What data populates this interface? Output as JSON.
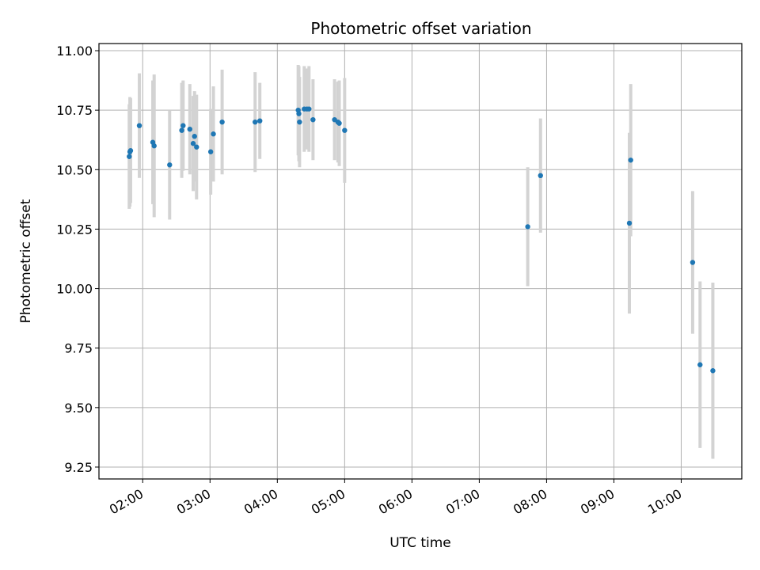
{
  "chart_data": {
    "type": "scatter",
    "title": "Photometric offset variation",
    "xlabel": "UTC time",
    "ylabel": "Photometric offset",
    "grid": true,
    "xlim_hours": [
      1.35,
      10.9
    ],
    "ylim": [
      9.2,
      11.03
    ],
    "x_ticks": [
      {
        "value": 2,
        "label": "02:00"
      },
      {
        "value": 3,
        "label": "03:00"
      },
      {
        "value": 4,
        "label": "04:00"
      },
      {
        "value": 5,
        "label": "05:00"
      },
      {
        "value": 6,
        "label": "06:00"
      },
      {
        "value": 7,
        "label": "07:00"
      },
      {
        "value": 8,
        "label": "08:00"
      },
      {
        "value": 9,
        "label": "09:00"
      },
      {
        "value": 10,
        "label": "10:00"
      }
    ],
    "y_ticks": [
      {
        "value": 9.25,
        "label": "9.25"
      },
      {
        "value": 9.5,
        "label": "9.50"
      },
      {
        "value": 9.75,
        "label": "9.75"
      },
      {
        "value": 10.0,
        "label": "10.00"
      },
      {
        "value": 10.25,
        "label": "10.25"
      },
      {
        "value": 10.5,
        "label": "10.50"
      },
      {
        "value": 10.75,
        "label": "10.75"
      },
      {
        "value": 11.0,
        "label": "11.00"
      }
    ],
    "point_color": "#1f77b4",
    "errorbar_color": "#d3d3d3",
    "points": [
      {
        "t": 1.8,
        "y": 10.555,
        "err": 0.22
      },
      {
        "t": 1.81,
        "y": 10.575,
        "err": 0.23
      },
      {
        "t": 1.82,
        "y": 10.58,
        "err": 0.22
      },
      {
        "t": 1.95,
        "y": 10.685,
        "err": 0.22
      },
      {
        "t": 2.15,
        "y": 10.615,
        "err": 0.26
      },
      {
        "t": 2.17,
        "y": 10.6,
        "err": 0.3
      },
      {
        "t": 2.4,
        "y": 10.52,
        "err": 0.23
      },
      {
        "t": 2.58,
        "y": 10.665,
        "err": 0.2
      },
      {
        "t": 2.6,
        "y": 10.685,
        "err": 0.19
      },
      {
        "t": 2.7,
        "y": 10.67,
        "err": 0.19
      },
      {
        "t": 2.75,
        "y": 10.61,
        "err": 0.2
      },
      {
        "t": 2.77,
        "y": 10.64,
        "err": 0.19
      },
      {
        "t": 2.8,
        "y": 10.595,
        "err": 0.22
      },
      {
        "t": 3.01,
        "y": 10.575,
        "err": 0.18
      },
      {
        "t": 3.05,
        "y": 10.65,
        "err": 0.2
      },
      {
        "t": 3.18,
        "y": 10.7,
        "err": 0.22
      },
      {
        "t": 3.67,
        "y": 10.7,
        "err": 0.21
      },
      {
        "t": 3.74,
        "y": 10.705,
        "err": 0.16
      },
      {
        "t": 4.31,
        "y": 10.75,
        "err": 0.19
      },
      {
        "t": 4.32,
        "y": 10.735,
        "err": 0.2
      },
      {
        "t": 4.33,
        "y": 10.7,
        "err": 0.19
      },
      {
        "t": 4.4,
        "y": 10.755,
        "err": 0.18
      },
      {
        "t": 4.44,
        "y": 10.755,
        "err": 0.17
      },
      {
        "t": 4.47,
        "y": 10.755,
        "err": 0.18
      },
      {
        "t": 4.53,
        "y": 10.71,
        "err": 0.17
      },
      {
        "t": 4.85,
        "y": 10.71,
        "err": 0.17
      },
      {
        "t": 4.9,
        "y": 10.7,
        "err": 0.17
      },
      {
        "t": 4.92,
        "y": 10.695,
        "err": 0.18
      },
      {
        "t": 5.0,
        "y": 10.665,
        "err": 0.22
      },
      {
        "t": 7.72,
        "y": 10.26,
        "err": 0.25
      },
      {
        "t": 7.91,
        "y": 10.475,
        "err": 0.24
      },
      {
        "t": 9.23,
        "y": 10.275,
        "err": 0.38
      },
      {
        "t": 9.25,
        "y": 10.54,
        "err": 0.32
      },
      {
        "t": 10.17,
        "y": 10.11,
        "err": 0.3
      },
      {
        "t": 10.28,
        "y": 9.68,
        "err": 0.35
      },
      {
        "t": 10.47,
        "y": 9.655,
        "err": 0.37
      }
    ]
  }
}
